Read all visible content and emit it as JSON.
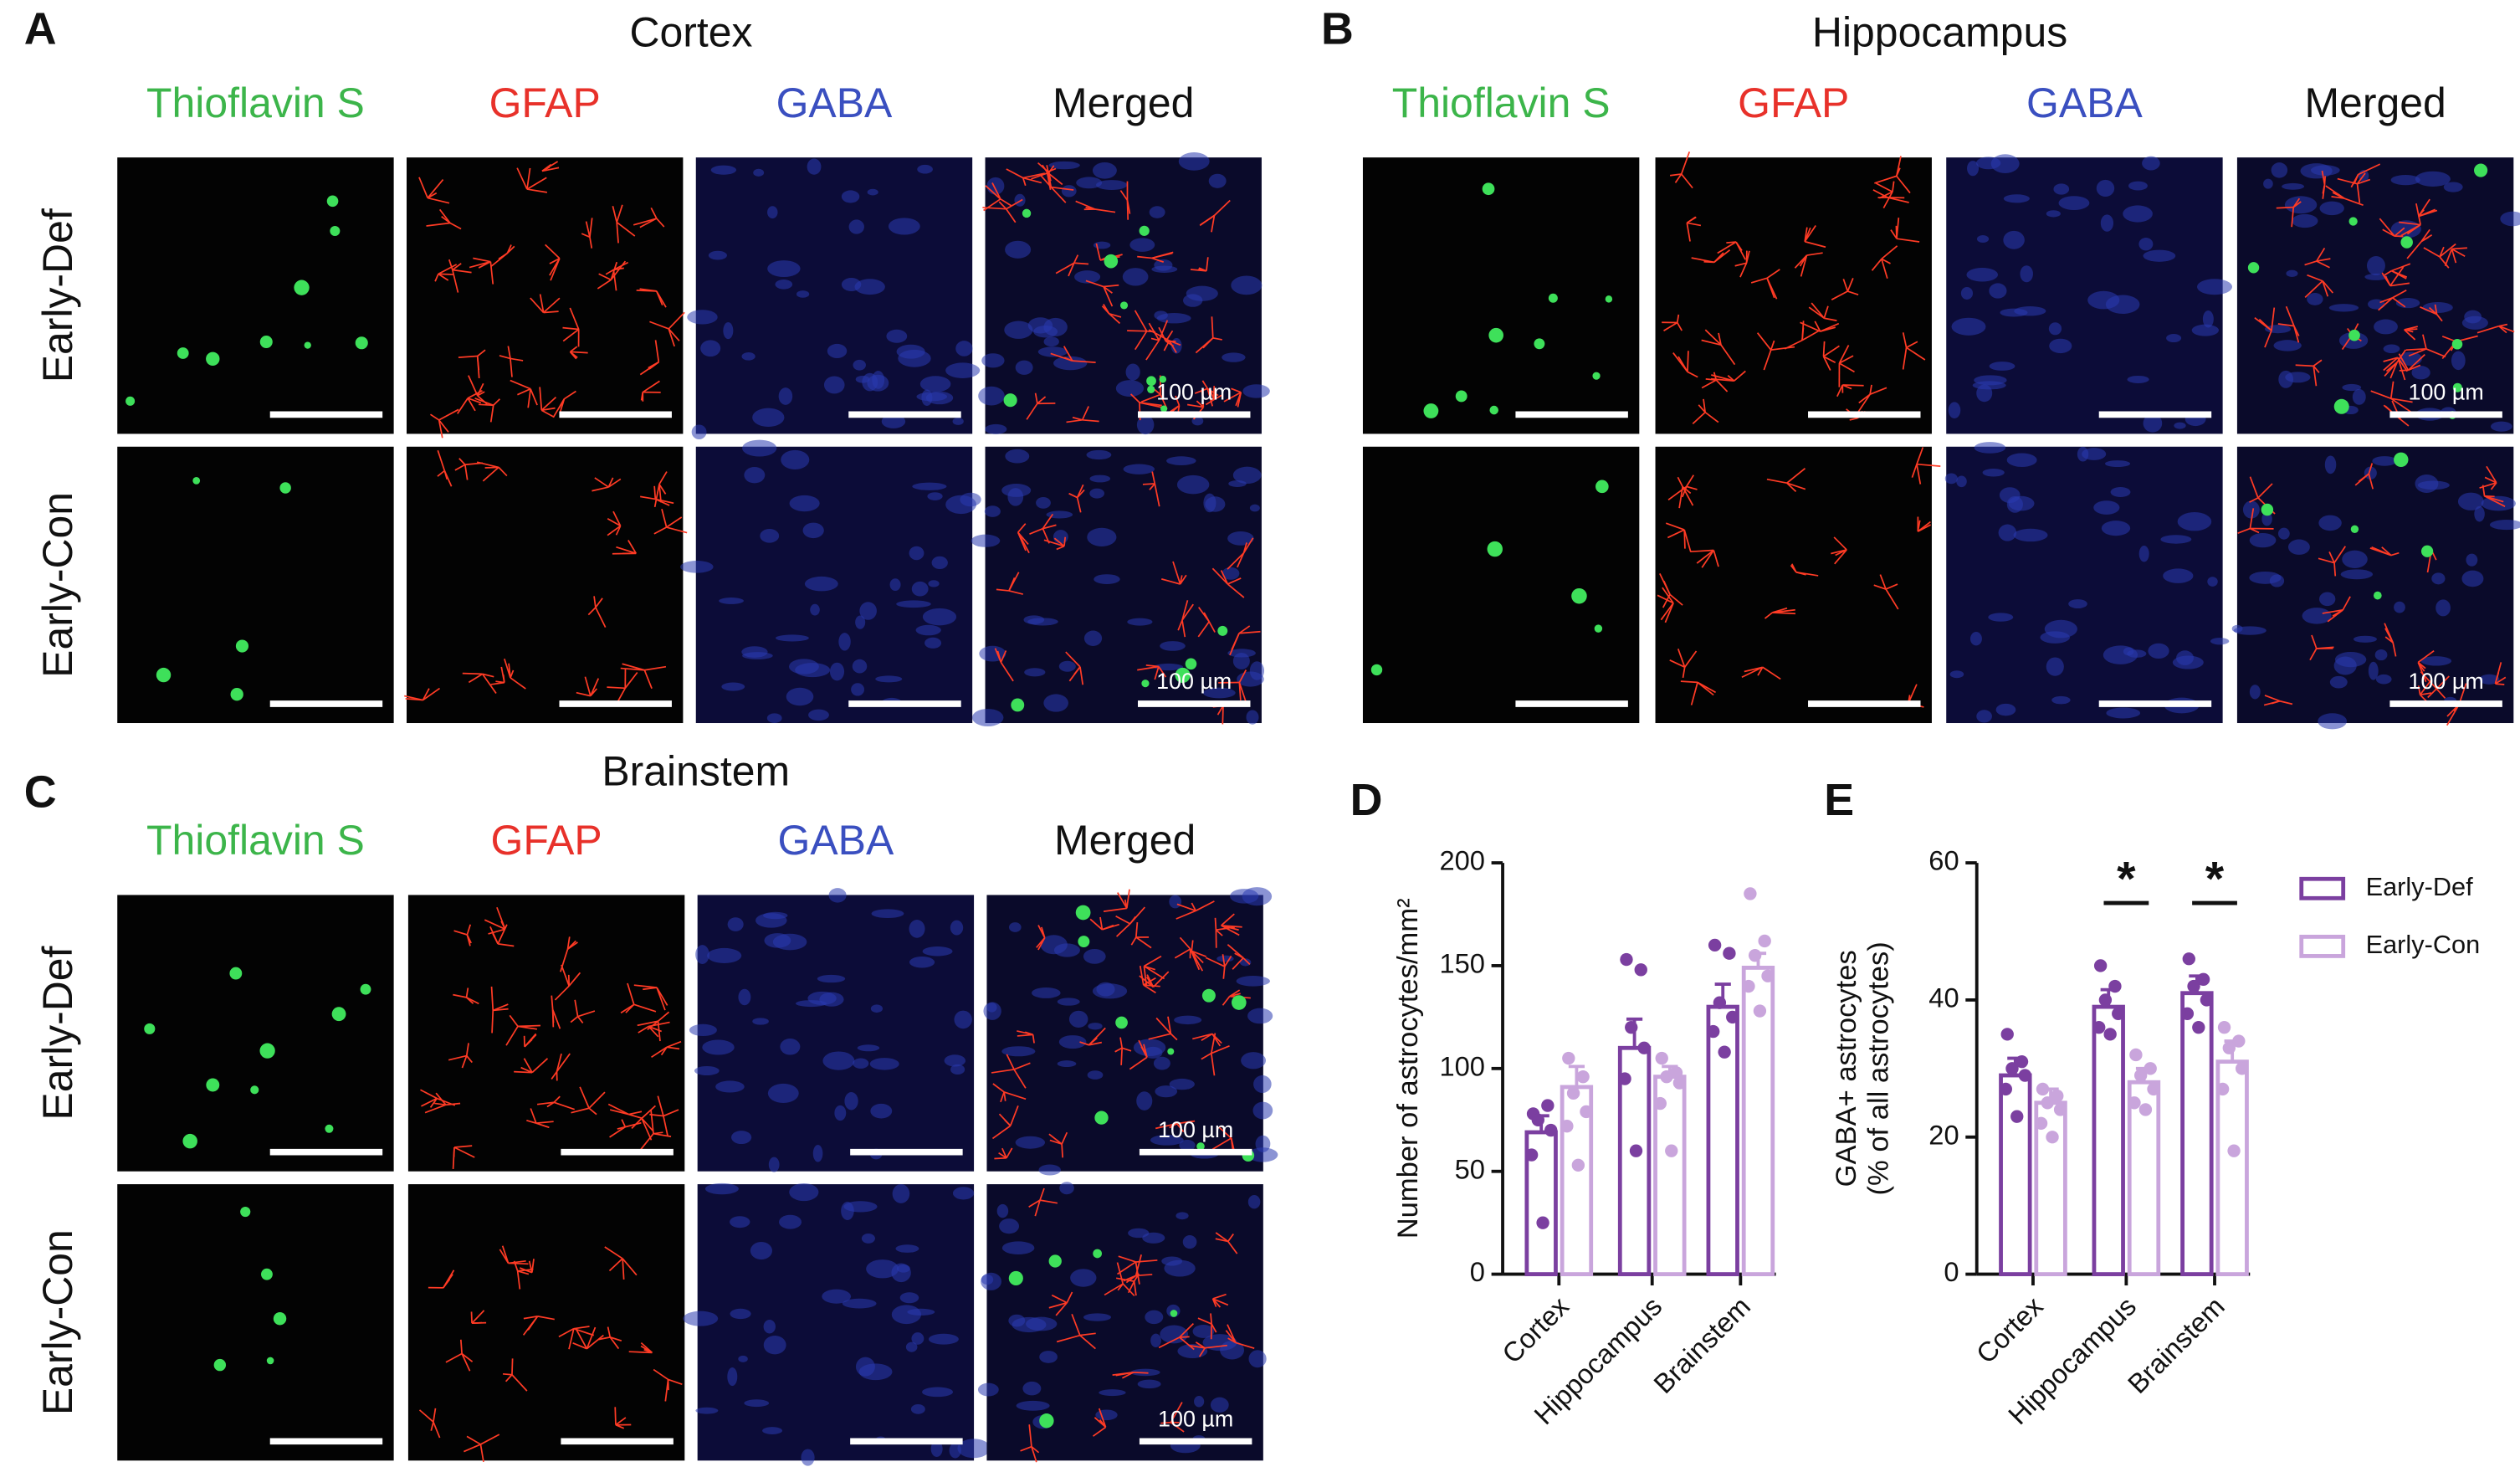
{
  "panels": [
    {
      "label": "A",
      "title": "Cortex",
      "channels": [
        "Thioflavin S",
        "GFAP",
        "GABA",
        "Merged"
      ],
      "rows": [
        "Early-Def",
        "Early-Con"
      ],
      "scale_bar": "100 µm"
    },
    {
      "label": "B",
      "title": "Hippocampus",
      "channels": [
        "Thioflavin S",
        "GFAP",
        "GABA",
        "Merged"
      ],
      "scale_bar": "100 µm"
    },
    {
      "label": "C",
      "title": "Brainstem",
      "channels": [
        "Thioflavin S",
        "GFAP",
        "GABA",
        "Merged"
      ],
      "rows": [
        "Early-Def",
        "Early-Con"
      ],
      "scale_bar": "100 µm"
    }
  ],
  "chart_data": [
    {
      "type": "bar",
      "label": "D",
      "ylabel": [
        "Number of astrocytes/mm²"
      ],
      "categories": [
        "Cortex",
        "Hippocampus",
        "Brainstem"
      ],
      "ylim": [
        0,
        200
      ],
      "yticks": [
        0,
        50,
        100,
        150,
        200
      ],
      "legend": false,
      "series": [
        {
          "color": "#7b3fa0",
          "values": [
            69,
            110,
            130
          ],
          "errors": [
            8,
            14,
            11
          ],
          "points": [
            [
              78,
              82,
              75,
              70,
              58,
              25
            ],
            [
              153,
              148,
              120,
              110,
              95,
              60
            ],
            [
              160,
              156,
              132,
              125,
              118,
              108
            ]
          ]
        },
        {
          "color": "#c9a5dc",
          "values": [
            91,
            96,
            149
          ],
          "errors": [
            10,
            5,
            7
          ],
          "points": [
            [
              105,
              96,
              88,
              79,
              72,
              53
            ],
            [
              105,
              98,
              96,
              93,
              83,
              60
            ],
            [
              185,
              162,
              155,
              145,
              140,
              128
            ]
          ]
        }
      ]
    },
    {
      "type": "bar",
      "label": "E",
      "ylabel": [
        "GABA+ astrocytes",
        "(% of all astrocytes)"
      ],
      "categories": [
        "Cortex",
        "Hippocampus",
        "Brainstem"
      ],
      "ylim": [
        0,
        60
      ],
      "yticks": [
        0,
        20,
        40,
        60
      ],
      "legend": "upper right",
      "significance": [
        null,
        "*",
        "*"
      ],
      "series": [
        {
          "name": "Early-Def",
          "color": "#7b3fa0",
          "values": [
            29,
            39,
            41
          ],
          "errors": [
            2.5,
            2.5,
            2.5
          ],
          "points": [
            [
              35,
              31,
              30,
              29,
              27,
              23
            ],
            [
              45,
              42,
              40,
              38,
              36,
              35
            ],
            [
              46,
              43,
              42,
              40,
              38,
              36
            ]
          ]
        },
        {
          "name": "Early-Con",
          "color": "#c9a5dc",
          "values": [
            25,
            28,
            31
          ],
          "errors": [
            2,
            2,
            3
          ],
          "points": [
            [
              27,
              26,
              25,
              24,
              22,
              20
            ],
            [
              32,
              30,
              29,
              27,
              25,
              24
            ],
            [
              36,
              34,
              33,
              30,
              27,
              18
            ]
          ]
        }
      ]
    }
  ]
}
